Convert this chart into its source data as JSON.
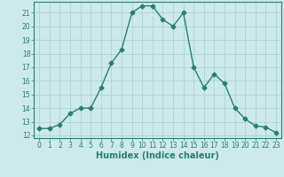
{
  "title": "",
  "xlabel": "Humidex (Indice chaleur)",
  "ylabel": "",
  "x": [
    0,
    1,
    2,
    3,
    4,
    5,
    6,
    7,
    8,
    9,
    10,
    11,
    12,
    13,
    14,
    15,
    16,
    17,
    18,
    19,
    20,
    21,
    22,
    23
  ],
  "y": [
    12.5,
    12.5,
    12.8,
    13.6,
    14.0,
    14.0,
    15.5,
    17.3,
    18.3,
    21.0,
    21.5,
    21.5,
    20.5,
    20.0,
    21.0,
    17.0,
    15.5,
    16.5,
    15.8,
    14.0,
    13.2,
    12.7,
    12.6,
    12.2
  ],
  "line_color": "#2e7d6e",
  "marker": "D",
  "markersize": 2.5,
  "linewidth": 1.0,
  "background_color": "#cceaea",
  "grid_color": "#aacece",
  "ylim": [
    11.8,
    21.8
  ],
  "xlim": [
    -0.5,
    23.5
  ],
  "yticks": [
    12,
    13,
    14,
    15,
    16,
    17,
    18,
    19,
    20,
    21
  ],
  "xticks": [
    0,
    1,
    2,
    3,
    4,
    5,
    6,
    7,
    8,
    9,
    10,
    11,
    12,
    13,
    14,
    15,
    16,
    17,
    18,
    19,
    20,
    21,
    22,
    23
  ],
  "tick_fontsize": 5.5,
  "xlabel_fontsize": 7.0
}
